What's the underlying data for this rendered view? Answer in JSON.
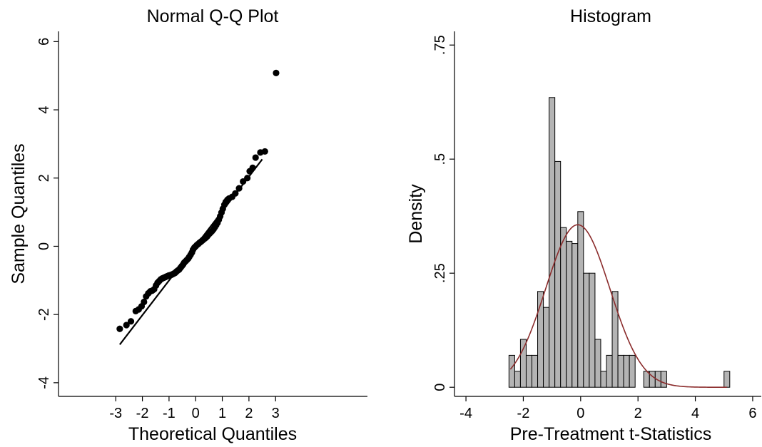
{
  "chart_data": [
    {
      "type": "scatter",
      "title": "Normal Q-Q Plot",
      "xlabel": "Theoretical Quantiles",
      "ylabel": "Sample Quantiles",
      "x_ticks": [
        "-3",
        "-2",
        "-1",
        "0",
        "1",
        "2",
        "3"
      ],
      "x_tick_values": [
        -3,
        -2,
        -1,
        0,
        1,
        2,
        3
      ],
      "y_ticks": [
        "-4",
        "-2",
        "0",
        "2",
        "4",
        "6"
      ],
      "y_tick_values": [
        -4,
        -2,
        0,
        2,
        4,
        6
      ],
      "xlim": [
        -5.15,
        6.45
      ],
      "ylim": [
        -4.4,
        6.3
      ],
      "points": [
        [
          -2.85,
          -2.42
        ],
        [
          -2.6,
          -2.31
        ],
        [
          -2.43,
          -2.2
        ],
        [
          -2.25,
          -1.9
        ],
        [
          -2.14,
          -1.85
        ],
        [
          -2.03,
          -1.76
        ],
        [
          -1.94,
          -1.63
        ],
        [
          -1.86,
          -1.47
        ],
        [
          -1.78,
          -1.38
        ],
        [
          -1.7,
          -1.32
        ],
        [
          -1.63,
          -1.3
        ],
        [
          -1.56,
          -1.26
        ],
        [
          -1.49,
          -1.15
        ],
        [
          -1.43,
          -1.07
        ],
        [
          -1.37,
          -1.02
        ],
        [
          -1.31,
          -0.97
        ],
        [
          -1.25,
          -0.94
        ],
        [
          -1.19,
          -0.92
        ],
        [
          -1.13,
          -0.9
        ],
        [
          -1.08,
          -0.88
        ],
        [
          -1.02,
          -0.86
        ],
        [
          -0.97,
          -0.85
        ],
        [
          -0.92,
          -0.84
        ],
        [
          -0.87,
          -0.82
        ],
        [
          -0.82,
          -0.8
        ],
        [
          -0.77,
          -0.78
        ],
        [
          -0.72,
          -0.74
        ],
        [
          -0.67,
          -0.71
        ],
        [
          -0.62,
          -0.68
        ],
        [
          -0.57,
          -0.63
        ],
        [
          -0.52,
          -0.58
        ],
        [
          -0.47,
          -0.53
        ],
        [
          -0.43,
          -0.48
        ],
        [
          -0.38,
          -0.44
        ],
        [
          -0.33,
          -0.4
        ],
        [
          -0.28,
          -0.36
        ],
        [
          -0.24,
          -0.31
        ],
        [
          -0.19,
          -0.25
        ],
        [
          -0.14,
          -0.18
        ],
        [
          -0.1,
          -0.1
        ],
        [
          -0.05,
          -0.04
        ],
        [
          0.0,
          0.0
        ],
        [
          0.05,
          0.04
        ],
        [
          0.1,
          0.07
        ],
        [
          0.14,
          0.1
        ],
        [
          0.19,
          0.13
        ],
        [
          0.24,
          0.16
        ],
        [
          0.28,
          0.19
        ],
        [
          0.33,
          0.22
        ],
        [
          0.38,
          0.25
        ],
        [
          0.43,
          0.29
        ],
        [
          0.47,
          0.33
        ],
        [
          0.52,
          0.37
        ],
        [
          0.57,
          0.41
        ],
        [
          0.62,
          0.45
        ],
        [
          0.67,
          0.5
        ],
        [
          0.72,
          0.56
        ],
        [
          0.77,
          0.62
        ],
        [
          0.82,
          0.69
        ],
        [
          0.87,
          0.78
        ],
        [
          0.92,
          0.88
        ],
        [
          0.97,
          0.99
        ],
        [
          1.02,
          1.1
        ],
        [
          1.08,
          1.22
        ],
        [
          1.13,
          1.3
        ],
        [
          1.19,
          1.36
        ],
        [
          1.25,
          1.4
        ],
        [
          1.37,
          1.45
        ],
        [
          1.49,
          1.55
        ],
        [
          1.63,
          1.7
        ],
        [
          1.78,
          1.9
        ],
        [
          1.94,
          2.0
        ],
        [
          2.03,
          2.2
        ],
        [
          2.14,
          2.3
        ],
        [
          2.25,
          2.6
        ],
        [
          2.43,
          2.75
        ],
        [
          2.6,
          2.78
        ],
        [
          3.02,
          5.08
        ]
      ],
      "reference_line": {
        "from": [
          -2.85,
          -2.88
        ],
        "to": [
          2.5,
          2.55
        ]
      }
    },
    {
      "type": "bar",
      "subtype": "histogram",
      "title": "Histogram",
      "xlabel": "Pre-Treatment t-Statistics",
      "ylabel": "Density",
      "x_ticks": [
        "-4",
        "-2",
        "0",
        "2",
        "4",
        "6"
      ],
      "x_tick_values": [
        -4,
        -2,
        0,
        2,
        4,
        6
      ],
      "y_ticks": [
        "0",
        ".25",
        ".5",
        ".75"
      ],
      "y_tick_values": [
        0,
        0.25,
        0.5,
        0.75
      ],
      "xlim": [
        -4.4,
        6.3
      ],
      "ylim": [
        -0.02,
        0.78
      ],
      "bin_width": 0.2,
      "bins": [
        {
          "start": -2.5,
          "density": 0.07
        },
        {
          "start": -2.3,
          "density": 0.035
        },
        {
          "start": -2.1,
          "density": 0.105
        },
        {
          "start": -1.9,
          "density": 0.07
        },
        {
          "start": -1.7,
          "density": 0.07
        },
        {
          "start": -1.5,
          "density": 0.21
        },
        {
          "start": -1.3,
          "density": 0.175
        },
        {
          "start": -1.1,
          "density": 0.635
        },
        {
          "start": -0.9,
          "density": 0.495
        },
        {
          "start": -0.7,
          "density": 0.35
        },
        {
          "start": -0.5,
          "density": 0.32
        },
        {
          "start": -0.3,
          "density": 0.315
        },
        {
          "start": -0.1,
          "density": 0.385
        },
        {
          "start": 0.1,
          "density": 0.25
        },
        {
          "start": 0.3,
          "density": 0.25
        },
        {
          "start": 0.5,
          "density": 0.105
        },
        {
          "start": 0.7,
          "density": 0.035
        },
        {
          "start": 0.9,
          "density": 0.07
        },
        {
          "start": 1.1,
          "density": 0.21
        },
        {
          "start": 1.3,
          "density": 0.07
        },
        {
          "start": 1.5,
          "density": 0.07
        },
        {
          "start": 1.7,
          "density": 0.07
        },
        {
          "start": 2.2,
          "density": 0.035
        },
        {
          "start": 2.4,
          "density": 0.035
        },
        {
          "start": 2.6,
          "density": 0.035
        },
        {
          "start": 2.8,
          "density": 0.035
        },
        {
          "start": 5.0,
          "density": 0.035
        }
      ],
      "density_curve": {
        "color": "#8b2c2c",
        "mean": -0.1,
        "sd": 1.12,
        "x_range": [
          -2.45,
          5.1
        ]
      },
      "bar_fill": "#b4b4b4"
    }
  ]
}
